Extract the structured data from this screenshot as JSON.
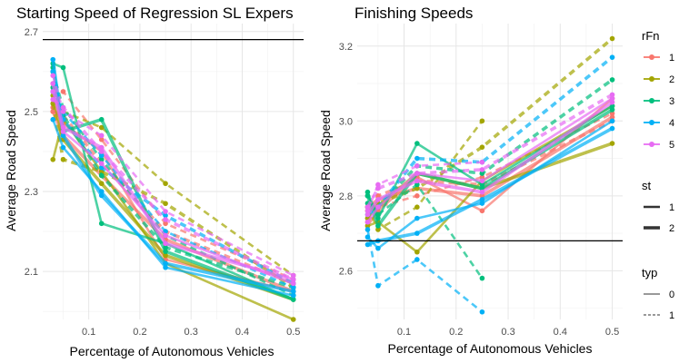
{
  "legend": {
    "rFn": {
      "title": "rFn",
      "items": [
        {
          "label": "1",
          "color": "#F8766D"
        },
        {
          "label": "2",
          "color": "#A3A500"
        },
        {
          "label": "3",
          "color": "#00BF7D"
        },
        {
          "label": "4",
          "color": "#00B0F6"
        },
        {
          "label": "5",
          "color": "#E76BF3"
        }
      ]
    },
    "st": {
      "title": "st",
      "items": [
        {
          "label": "1"
        },
        {
          "label": "2"
        }
      ]
    },
    "typ": {
      "title": "typ",
      "items": [
        {
          "label": "0",
          "style": "solid"
        },
        {
          "label": "1",
          "style": "dashed"
        }
      ]
    }
  },
  "chart_data": [
    {
      "type": "line",
      "title": "Starting Speed of Regression SL Expers",
      "xlabel": "Percentage of Autonomous Vehicles",
      "ylabel": "Average Road Speed",
      "xlim": [
        0.01,
        0.52
      ],
      "ylim": [
        1.98,
        2.72
      ],
      "xticks": [
        0.1,
        0.2,
        0.3,
        0.4,
        0.5
      ],
      "xtick_labels": [
        "0.1",
        "0.2",
        "0.3",
        "0.4",
        "0.5"
      ],
      "yticks": [
        2.1,
        2.3,
        2.5,
        2.7
      ],
      "ytick_labels": [
        "2.1",
        "2.3",
        "2.5",
        "2.7"
      ],
      "hline": 2.68,
      "grid": true,
      "x": [
        0.03,
        0.05,
        0.125,
        0.25,
        0.5
      ],
      "series": [
        {
          "rFn": "1",
          "st": "1",
          "typ": "0",
          "values": [
            2.51,
            2.47,
            2.4,
            2.13,
            2.05
          ]
        },
        {
          "rFn": "1",
          "st": "2",
          "typ": "0",
          "values": [
            2.5,
            2.44,
            2.34,
            2.18,
            2.05
          ]
        },
        {
          "rFn": "1",
          "st": "1",
          "typ": "1",
          "values": [
            2.57,
            2.55,
            2.43,
            2.22,
            2.08
          ]
        },
        {
          "rFn": "1",
          "st": "2",
          "typ": "1",
          "values": [
            2.5,
            2.49,
            2.37,
            2.2,
            2.07
          ]
        },
        {
          "rFn": "2",
          "st": "1",
          "typ": "0",
          "values": [
            2.38,
            2.48,
            2.35,
            2.12,
            1.98
          ]
        },
        {
          "rFn": "2",
          "st": "2",
          "typ": "0",
          "values": [
            2.54,
            2.43,
            2.32,
            2.14,
            2.03
          ]
        },
        {
          "rFn": "2",
          "st": "1",
          "typ": "1",
          "values": [
            2.55,
            2.5,
            2.46,
            2.32,
            2.09
          ]
        },
        {
          "rFn": "2",
          "st": "2",
          "typ": "1",
          "values": [
            2.52,
            2.38,
            2.35,
            2.27,
            2.06
          ]
        },
        {
          "rFn": "3",
          "st": "1",
          "typ": "0",
          "values": [
            2.62,
            2.61,
            2.22,
            2.17,
            2.03
          ]
        },
        {
          "rFn": "3",
          "st": "2",
          "typ": "0",
          "values": [
            2.61,
            2.45,
            2.48,
            2.15,
            2.03
          ]
        },
        {
          "rFn": "3",
          "st": "1",
          "typ": "1",
          "values": [
            2.6,
            2.51,
            2.38,
            2.19,
            2.04
          ]
        },
        {
          "rFn": "3",
          "st": "2",
          "typ": "1",
          "values": [
            2.56,
            2.49,
            2.34,
            2.16,
            2.06
          ]
        },
        {
          "rFn": "4",
          "st": "1",
          "typ": "0",
          "values": [
            2.48,
            2.41,
            2.3,
            2.11,
            2.04
          ]
        },
        {
          "rFn": "4",
          "st": "2",
          "typ": "0",
          "values": [
            2.63,
            2.44,
            2.29,
            2.12,
            2.05
          ]
        },
        {
          "rFn": "4",
          "st": "1",
          "typ": "1",
          "values": [
            2.55,
            2.5,
            2.39,
            2.2,
            2.06
          ]
        },
        {
          "rFn": "4",
          "st": "2",
          "typ": "1",
          "values": [
            2.6,
            2.48,
            2.36,
            2.24,
            2.07
          ]
        },
        {
          "rFn": "5",
          "st": "1",
          "typ": "0",
          "values": [
            2.55,
            2.45,
            2.37,
            2.19,
            2.07
          ]
        },
        {
          "rFn": "5",
          "st": "2",
          "typ": "0",
          "values": [
            2.57,
            2.46,
            2.41,
            2.17,
            2.08
          ]
        },
        {
          "rFn": "5",
          "st": "1",
          "typ": "1",
          "values": [
            2.59,
            2.5,
            2.44,
            2.25,
            2.09
          ]
        },
        {
          "rFn": "5",
          "st": "2",
          "typ": "1",
          "values": [
            2.53,
            2.51,
            2.4,
            2.23,
            2.08
          ]
        }
      ]
    },
    {
      "type": "line",
      "title": "Finishing Speeds",
      "xlabel": "Percentage of Autonomous Vehicles",
      "ylabel": "Average Road Speed",
      "xlim": [
        0.01,
        0.52
      ],
      "ylim": [
        2.47,
        3.26
      ],
      "xticks": [
        0.1,
        0.2,
        0.3,
        0.4,
        0.5
      ],
      "xtick_labels": [
        "0.1",
        "0.2",
        "0.3",
        "0.4",
        "0.5"
      ],
      "yticks": [
        2.6,
        2.8,
        3.0,
        3.2
      ],
      "ytick_labels": [
        "2.6",
        "2.8",
        "3.0",
        "3.2"
      ],
      "hline": 2.68,
      "grid": true,
      "x": [
        0.03,
        0.05,
        0.125,
        0.25,
        0.5
      ],
      "series": [
        {
          "rFn": "1",
          "st": "1",
          "typ": "0",
          "values": [
            2.72,
            2.76,
            2.85,
            2.76,
            3.06
          ]
        },
        {
          "rFn": "1",
          "st": "2",
          "typ": "0",
          "values": [
            2.77,
            2.79,
            2.82,
            2.8,
            3.01
          ]
        },
        {
          "rFn": "1",
          "st": "1",
          "typ": "1",
          "values": [
            2.73,
            2.77,
            2.8,
            2.85,
            3.02
          ]
        },
        {
          "rFn": "1",
          "st": "2",
          "typ": "1",
          "values": [
            2.74,
            2.8,
            2.84,
            2.83,
            3.0
          ]
        },
        {
          "rFn": "2",
          "st": "1",
          "typ": "0",
          "values": [
            2.72,
            2.73,
            2.65,
            2.84,
            3.04
          ]
        },
        {
          "rFn": "2",
          "st": "2",
          "typ": "0",
          "values": [
            2.76,
            2.77,
            2.86,
            2.82,
            2.94
          ]
        },
        {
          "rFn": "2",
          "st": "1",
          "typ": "1",
          "values": [
            2.77,
            2.71,
            2.77,
            3.0,
            null
          ]
        },
        {
          "rFn": "2",
          "st": "2",
          "typ": "1",
          "values": [
            2.74,
            2.78,
            2.82,
            2.93,
            3.22
          ]
        },
        {
          "rFn": "3",
          "st": "1",
          "typ": "0",
          "values": [
            2.81,
            2.74,
            2.94,
            2.83,
            3.04
          ]
        },
        {
          "rFn": "3",
          "st": "2",
          "typ": "0",
          "values": [
            2.8,
            2.72,
            2.86,
            2.82,
            3.03
          ]
        },
        {
          "rFn": "3",
          "st": "1",
          "typ": "1",
          "values": [
            2.8,
            2.75,
            2.83,
            2.58,
            null
          ]
        },
        {
          "rFn": "3",
          "st": "2",
          "typ": "1",
          "values": [
            2.78,
            2.77,
            2.88,
            2.86,
            3.11
          ]
        },
        {
          "rFn": "4",
          "st": "1",
          "typ": "0",
          "values": [
            2.69,
            2.66,
            2.74,
            2.78,
            3.0
          ]
        },
        {
          "rFn": "4",
          "st": "2",
          "typ": "0",
          "values": [
            2.67,
            2.68,
            2.7,
            2.79,
            2.98
          ]
        },
        {
          "rFn": "4",
          "st": "1",
          "typ": "1",
          "values": [
            2.71,
            2.56,
            2.63,
            2.49,
            null
          ]
        },
        {
          "rFn": "4",
          "st": "2",
          "typ": "1",
          "values": [
            2.75,
            2.77,
            2.9,
            2.89,
            3.17
          ]
        },
        {
          "rFn": "5",
          "st": "1",
          "typ": "0",
          "values": [
            2.73,
            2.77,
            2.86,
            2.84,
            3.06
          ]
        },
        {
          "rFn": "5",
          "st": "2",
          "typ": "0",
          "values": [
            2.75,
            2.79,
            2.84,
            2.81,
            3.05
          ]
        },
        {
          "rFn": "5",
          "st": "1",
          "typ": "1",
          "values": [
            2.76,
            2.83,
            2.88,
            2.89,
            null
          ]
        },
        {
          "rFn": "5",
          "st": "2",
          "typ": "1",
          "values": [
            2.77,
            2.82,
            2.86,
            2.87,
            3.07
          ]
        }
      ]
    }
  ]
}
